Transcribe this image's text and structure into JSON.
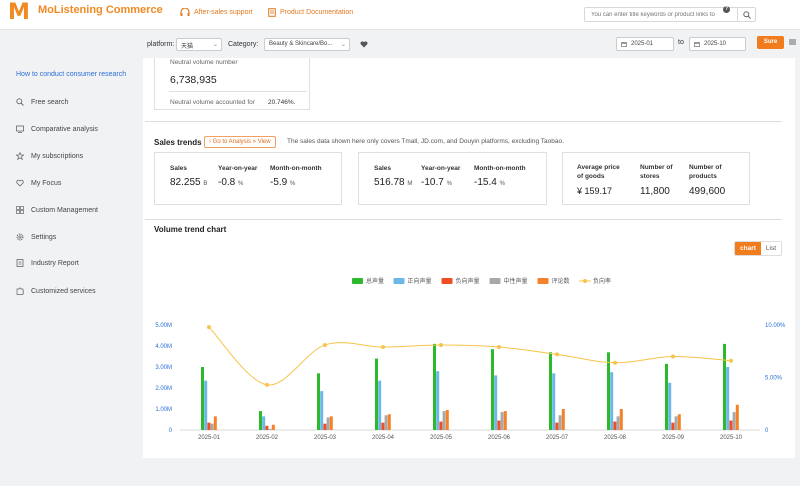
{
  "app": {
    "name": "MoListening Commerce",
    "logo_letter": "M",
    "brand_color": "#f08a24"
  },
  "topnav": {
    "after_sales": "After-sales support",
    "docs": "Product Documentation"
  },
  "search": {
    "placeholder": "You can enter title keywords or product links to"
  },
  "sidebar": {
    "heading": "How to conduct consumer research",
    "items": [
      {
        "label": "Free search",
        "icon": "search-icon"
      },
      {
        "label": "Comparative analysis",
        "icon": "compare-icon"
      },
      {
        "label": "My subscriptions",
        "icon": "star-icon"
      },
      {
        "label": "My Focus",
        "icon": "heart-icon"
      },
      {
        "label": "Custom Management",
        "icon": "grid-icon"
      },
      {
        "label": "Settings",
        "icon": "gear-icon"
      },
      {
        "label": "Industry Report",
        "icon": "report-icon"
      },
      {
        "label": "Customized services",
        "icon": "puzzle-icon"
      }
    ]
  },
  "filters": {
    "platform_label": "platform:",
    "platform_value": "天猫",
    "category_label": "Category:",
    "category_value": "Beauty & Skincare/Bo...",
    "date_start": "2025-01",
    "date_to": "to",
    "date_end": "2025-10",
    "sure": "Sure"
  },
  "neutral": {
    "volume_label": "Neutral volume number",
    "volume_value": "6,738,935",
    "share_label": "Neutral volume accounted for",
    "share_value": "20.746%."
  },
  "sales_trends": {
    "title": "Sales trends",
    "analysis_button": "› Go to Analysis » View",
    "note": "The sales data shown here only covers Tmall, JD.com, and Douyin platforms, excluding Taobao.",
    "card1": {
      "sales_label": "Sales",
      "sales_value": "82.255",
      "sales_unit": "B",
      "yoy_label": "Year-on-year",
      "yoy_value": "-0.8",
      "yoy_unit": "%",
      "mom_label": "Month-on-month",
      "mom_value": "-5.9",
      "mom_unit": "%"
    },
    "card2": {
      "sales_label": "Sales",
      "sales_value": "516.78",
      "sales_unit": "M",
      "yoy_label": "Year-on-year",
      "yoy_value": "-10.7",
      "yoy_unit": "%",
      "mom_label": "Month-on-month",
      "mom_value": "-15.4",
      "mom_unit": "%"
    },
    "card3": {
      "price_label_1": "Average price",
      "price_label_2": "of goods",
      "price_value": "¥ 159.17",
      "stores_label_1": "Number of",
      "stores_label_2": "stores",
      "stores_value": "11,800",
      "products_label_1": "Number of",
      "products_label_2": "products",
      "products_value": "499,600"
    }
  },
  "volume_chart": {
    "title": "Volume trend chart",
    "toggle_chart": "chart",
    "toggle_list": "List"
  },
  "chart_data": {
    "type": "bar",
    "categories": [
      "2025-01",
      "2025-02",
      "2025-03",
      "2025-04",
      "2025-05",
      "2025-06",
      "2025-07",
      "2025-08",
      "2025-09",
      "2025-10"
    ],
    "series": [
      {
        "name": "总声量",
        "color": "#2eb82e",
        "values": [
          3.0,
          0.9,
          2.7,
          3.4,
          4.1,
          3.85,
          3.7,
          3.7,
          3.15,
          4.1
        ]
      },
      {
        "name": "正向声量",
        "color": "#6ab7e8",
        "values": [
          2.35,
          0.65,
          1.85,
          2.35,
          2.8,
          2.6,
          2.7,
          2.75,
          2.25,
          3.0
        ]
      },
      {
        "name": "负向声量",
        "color": "#f04e23",
        "values": [
          0.35,
          0.2,
          0.3,
          0.35,
          0.4,
          0.45,
          0.35,
          0.4,
          0.35,
          0.45
        ]
      },
      {
        "name": "中性声量",
        "color": "#a8a8a8",
        "values": [
          0.3,
          0.05,
          0.6,
          0.7,
          0.9,
          0.85,
          0.7,
          0.65,
          0.65,
          0.85
        ]
      },
      {
        "name": "评论数",
        "color": "#f5822a",
        "values": [
          0.65,
          0.25,
          0.65,
          0.75,
          0.95,
          0.9,
          1.0,
          1.0,
          0.75,
          1.2
        ]
      },
      {
        "name": "负向率",
        "color": "#f7c44a",
        "axis": "right",
        "values": [
          9.8,
          4.3,
          8.1,
          7.9,
          8.1,
          7.9,
          7.2,
          6.4,
          7.0,
          6.6
        ]
      }
    ],
    "y_left": {
      "ticks": [
        "0",
        "1.00M",
        "2.00M",
        "3.00M",
        "4.00M",
        "5.00M"
      ],
      "range": [
        0,
        5
      ]
    },
    "y_right": {
      "ticks": [
        "0",
        "5.00%",
        "10.00%"
      ],
      "range": [
        0,
        10
      ]
    },
    "legend_position": "top-center",
    "grid": false
  }
}
